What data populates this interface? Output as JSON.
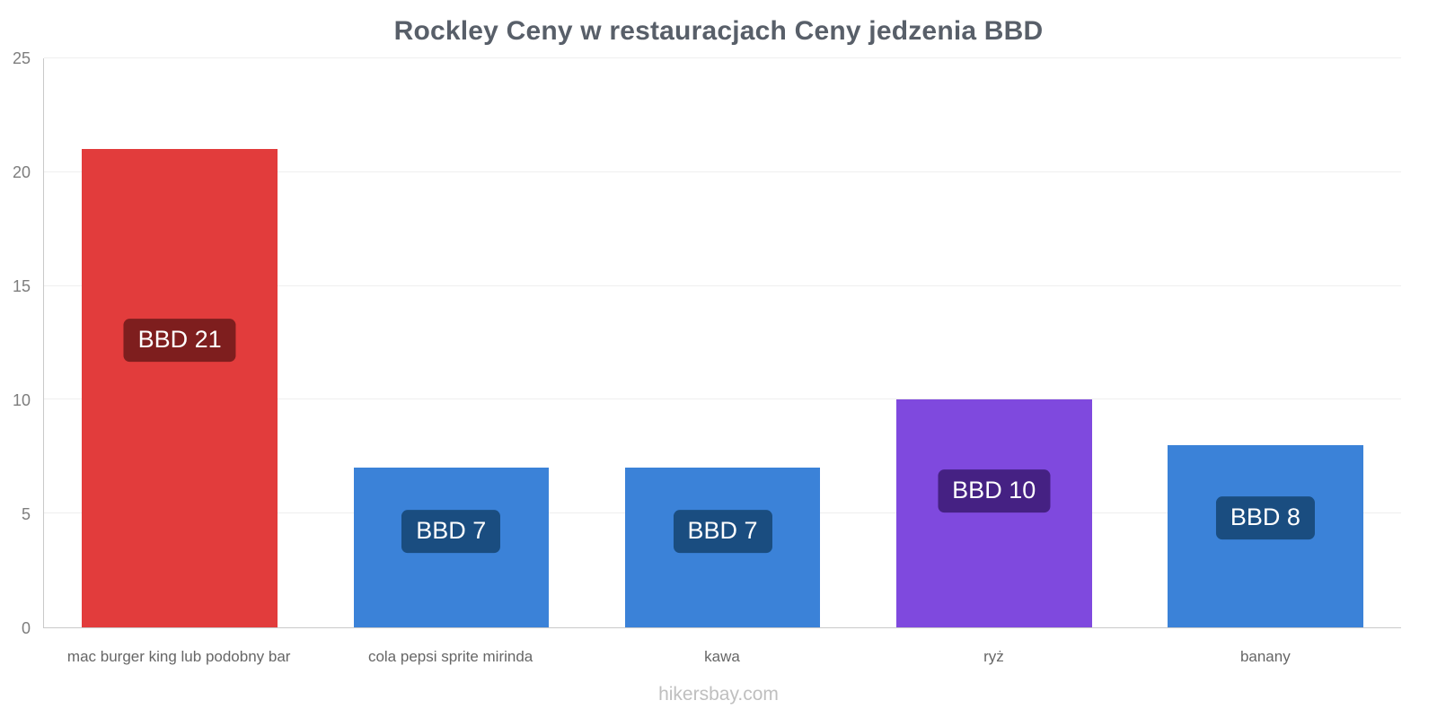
{
  "chart_data": {
    "type": "bar",
    "title": "Rockley Ceny w restauracjach Ceny jedzenia BBD",
    "categories": [
      "mac burger king lub podobny bar",
      "cola pepsi sprite mirinda",
      "kawa",
      "ryż",
      "banany"
    ],
    "values": [
      21,
      7,
      7,
      10,
      8
    ],
    "value_labels": [
      "BBD 21",
      "BBD 7",
      "BBD 7",
      "BBD 10",
      "BBD 8"
    ],
    "bar_colors": [
      "#e23c3c",
      "#3b82d8",
      "#3b82d8",
      "#7f49de",
      "#3b82d8"
    ],
    "label_bg_colors": [
      "#7e1e1e",
      "#1a4d80",
      "#1a4d80",
      "#452183",
      "#1a4d80"
    ],
    "ylim": [
      0,
      25
    ],
    "yticks": [
      0,
      5,
      10,
      15,
      20,
      25
    ],
    "xlabel": "",
    "ylabel": "",
    "grid": true,
    "legend": "none",
    "footer": "hikersbay.com"
  }
}
